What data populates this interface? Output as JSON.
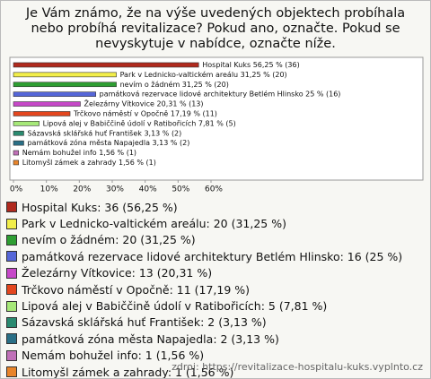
{
  "chart_data": {
    "type": "bar",
    "orientation": "horizontal",
    "title": "Je Vám známo, že na výše uvedených objektech probíhala nebo probíhá revitalizace? Pokud ano, označte. Pokud se nevyskytuje v nabídce, označte níže.",
    "categories": [
      "Hospital Kuks",
      "Park v Lednicko-valtickém areálu",
      "nevím o žádném",
      "památková rezervace lidové architektury Betlém Hlinsko",
      "Železárny Vítkovice",
      "Trčkovo náměstí v Opočně",
      "Lipová alej v Babiččině údolí v Ratibořicích",
      "Sázavská sklářská huť František",
      "památková zóna města Napajedla",
      "Nemám bohužel info",
      "Litomyšl zámek a zahrady"
    ],
    "values": [
      56.25,
      31.25,
      31.25,
      25,
      20.31,
      17.19,
      7.81,
      3.13,
      3.13,
      1.56,
      1.56
    ],
    "value_labels": [
      "Hospital Kuks 56,25 % (36)",
      "Park v Lednicko-valtickém areálu 31,25 % (20)",
      "nevím o žádném 31,25 % (20)",
      "památková rezervace lidové architektury Betlém Hlinsko 25 % (16)",
      "Železárny Vítkovice 20,31 % (13)",
      "Trčkovo náměstí v Opočně 17,19 % (11)",
      "Lipová alej v Babiččině údolí v Ratibořicích 7,81 % (5)",
      "Sázavská sklářská huť František 3,13 % (2)",
      "památková zóna města Napajedla 3,13 % (2)",
      "Nemám bohužel info 1,56 % (1)",
      "Litomyšl zámek a zahrady 1,56 % (1)"
    ],
    "legend_labels": [
      "Hospital Kuks: 36 (56,25 %)",
      "Park v Lednicko-valtickém areálu: 20 (31,25 %)",
      "nevím o žádném: 20 (31,25 %)",
      "památková rezervace lidové architektury Betlém Hlinsko: 16 (25 %)",
      "Železárny Vítkovice: 13 (20,31 %)",
      "Trčkovo náměstí v Opočně: 11 (17,19 %)",
      "Lipová alej v Babiččině údolí v Ratibořicích: 5 (7,81 %)",
      "Sázavská sklářská huť František: 2 (3,13 %)",
      "památková zóna města Napajedla: 2 (3,13 %)",
      "Nemám bohužel info: 1 (1,56 %)",
      "Litomyšl zámek a zahrady: 1 (1,56 %)"
    ],
    "colors": [
      "#b02a1e",
      "#f2ee4a",
      "#2e9e32",
      "#5566d8",
      "#c648c8",
      "#e3461e",
      "#a6e878",
      "#2a8a70",
      "#2a6f86",
      "#c070b8",
      "#e8842a"
    ],
    "xlim": [
      0,
      60
    ],
    "xticks": [
      {
        "value": 0,
        "label": "0%"
      },
      {
        "value": 10,
        "label": "10%"
      },
      {
        "value": 20,
        "label": "20%"
      },
      {
        "value": 30,
        "label": "30%"
      },
      {
        "value": 40,
        "label": "40%"
      },
      {
        "value": 50,
        "label": "50%"
      },
      {
        "value": 60,
        "label": "60%"
      }
    ],
    "source": "zdroj: https://revitalizace-hospitalu-kuks.vyplnto.cz"
  }
}
